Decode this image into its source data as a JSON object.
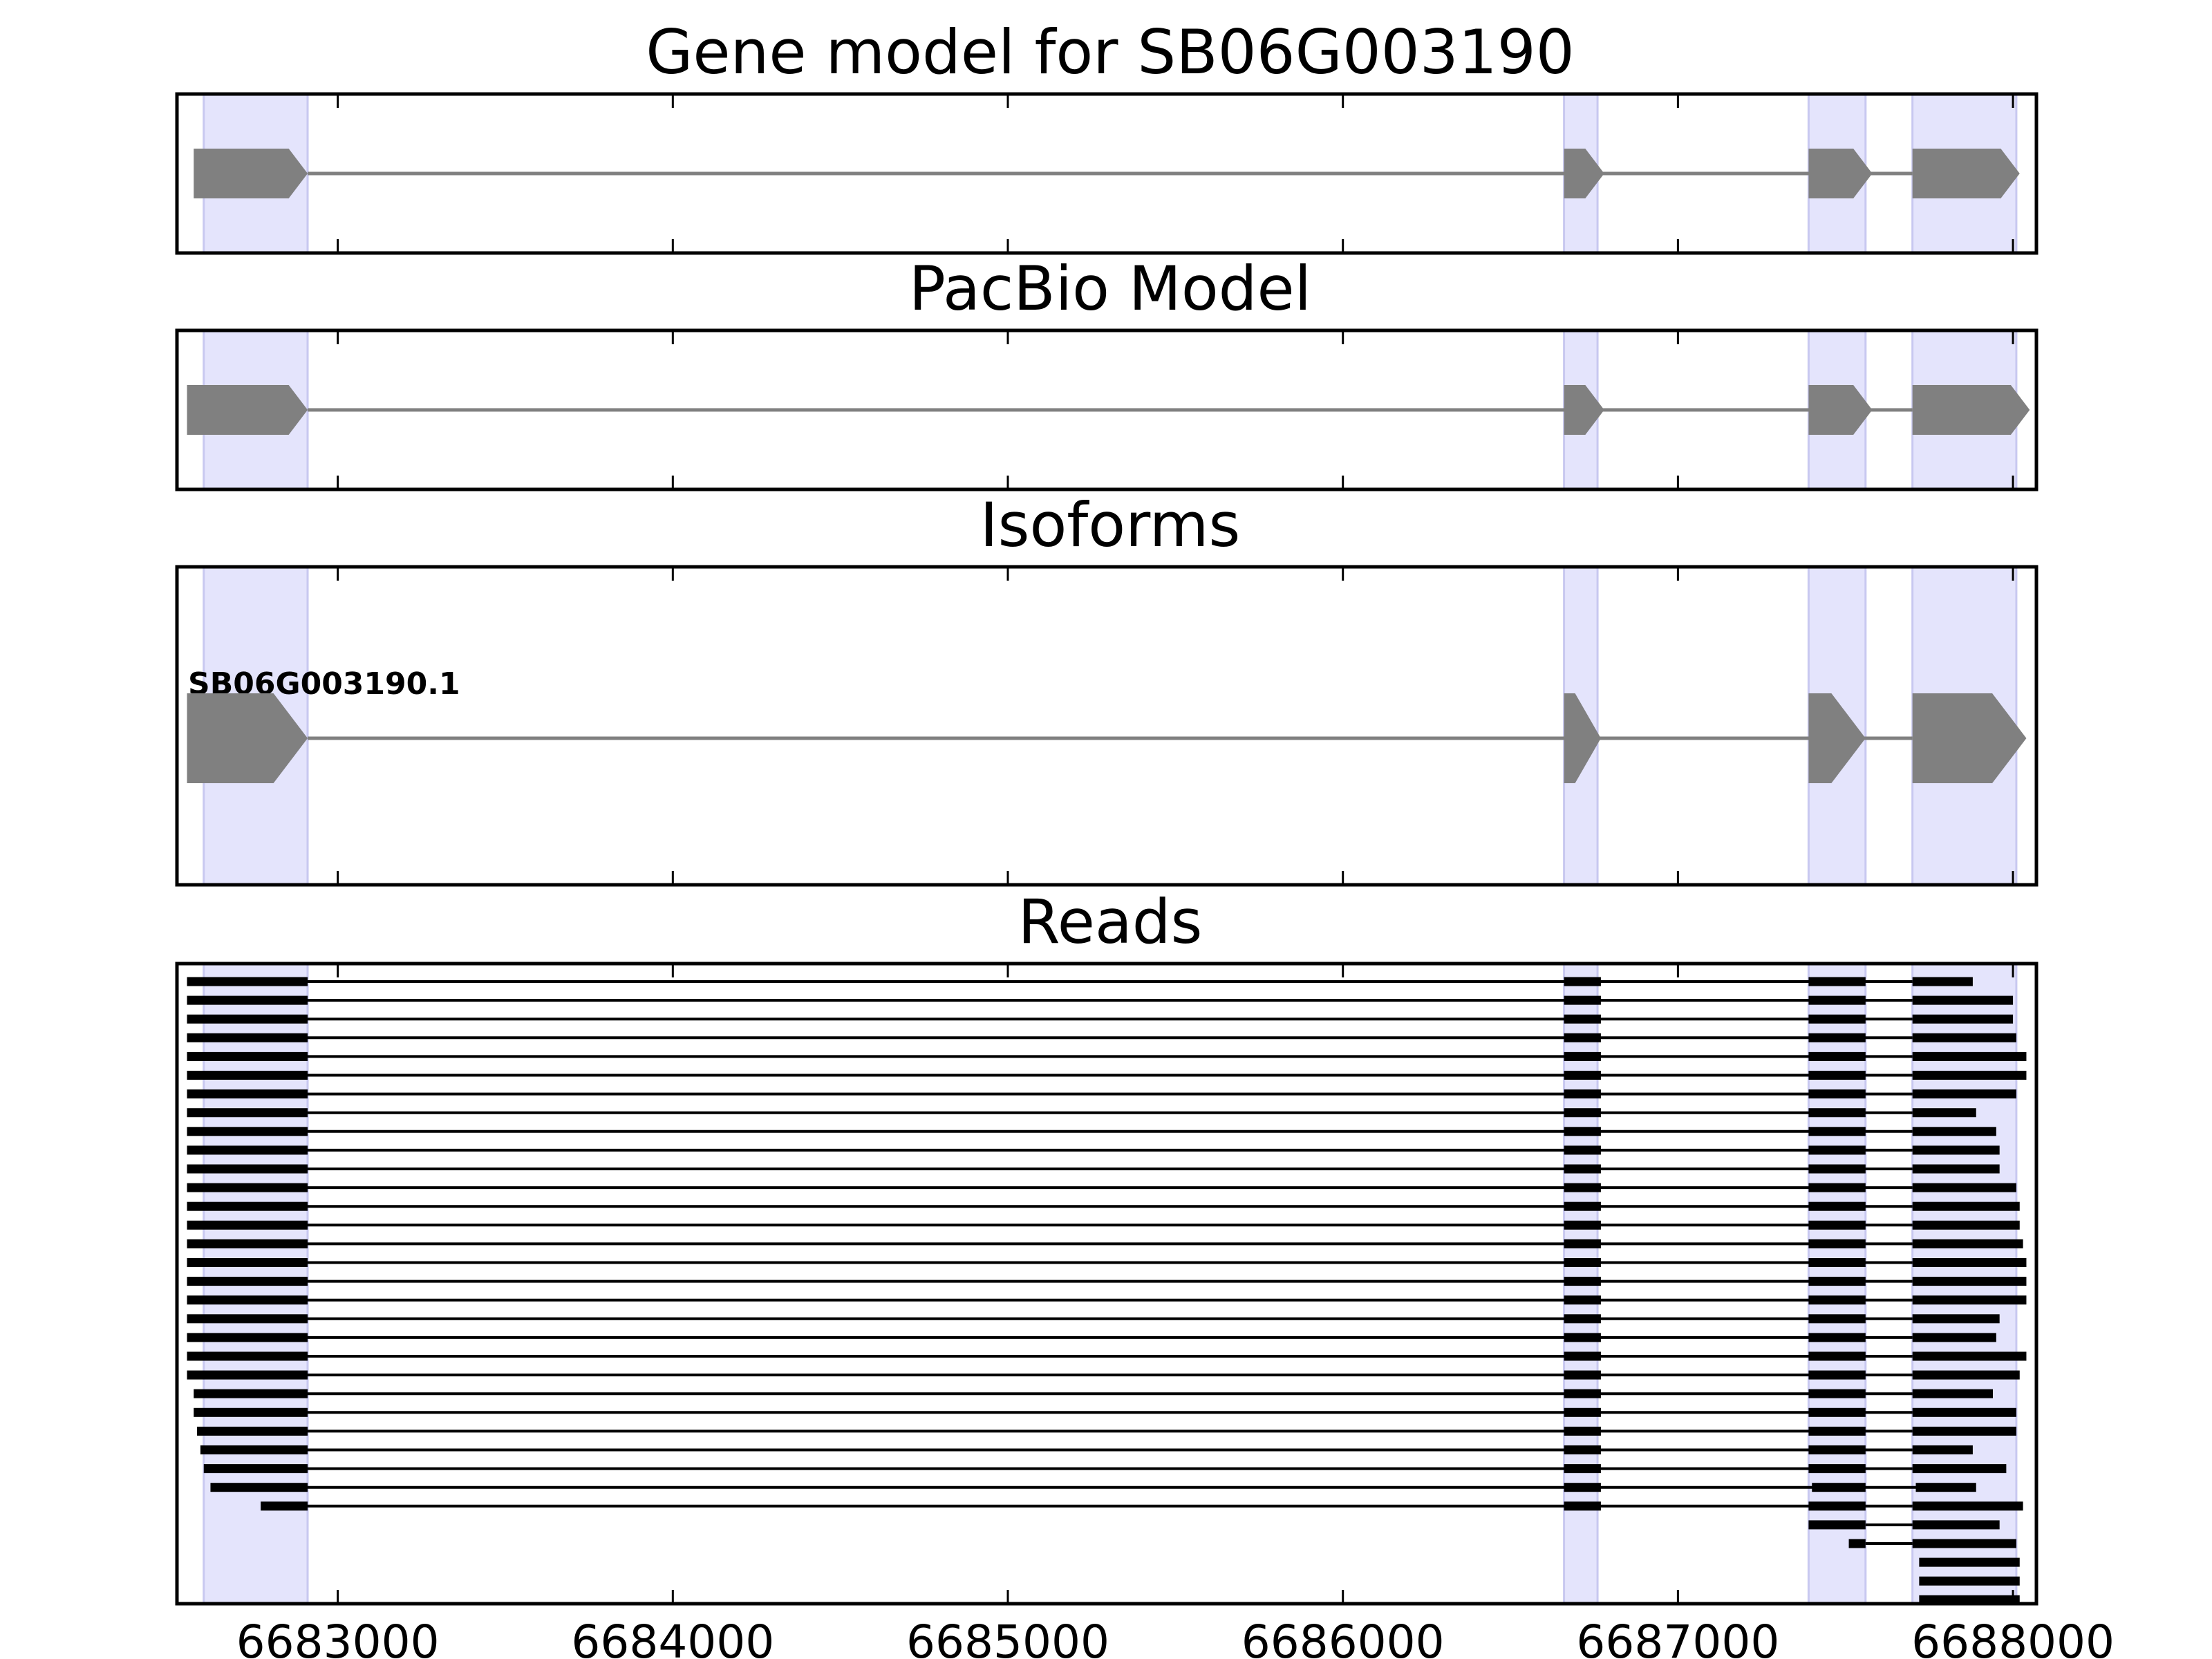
{
  "chart_data": {
    "type": "gene-structure",
    "xlim": [
      6682520,
      6688070
    ],
    "xticks": [
      6683000,
      6684000,
      6685000,
      6686000,
      6687000,
      6688000
    ],
    "xtick_labels": [
      "6683000",
      "6684000",
      "6685000",
      "6686000",
      "6687000",
      "6688000"
    ],
    "exon_highlights": [
      [
        6682600,
        6682910
      ],
      [
        6686660,
        6686760
      ],
      [
        6687390,
        6687560
      ],
      [
        6687700,
        6688010
      ]
    ],
    "colors": {
      "highlight": "#e4e4fc",
      "highlight_edge": "#c8c8f0",
      "gene": "#808080",
      "read": "#000000",
      "frame": "#000000"
    },
    "panels": [
      {
        "title": "Gene model for SB06G003190",
        "models": [
          {
            "label": "",
            "exons": [
              [
                6682570,
                6682910
              ],
              [
                6686660,
                6686780
              ],
              [
                6687390,
                6687580
              ],
              [
                6687700,
                6688020
              ]
            ]
          }
        ]
      },
      {
        "title": "PacBio Model",
        "models": [
          {
            "label": "",
            "exons": [
              [
                6682550,
                6682910
              ],
              [
                6686660,
                6686780
              ],
              [
                6687390,
                6687580
              ],
              [
                6687700,
                6688050
              ]
            ]
          }
        ]
      },
      {
        "title": "Isoforms",
        "models": [
          {
            "label": "SB06G003190.1",
            "exons": [
              [
                6682550,
                6682910
              ],
              [
                6686660,
                6686770
              ],
              [
                6687390,
                6687560
              ],
              [
                6687700,
                6688040
              ]
            ]
          }
        ]
      },
      {
        "title": "Reads",
        "reads": [
          [
            [
              6682550,
              6682910
            ],
            [
              6686660,
              6686770
            ],
            [
              6687390,
              6687560
            ],
            [
              6687700,
              6687880
            ]
          ],
          [
            [
              6682550,
              6682910
            ],
            [
              6686660,
              6686770
            ],
            [
              6687390,
              6687560
            ],
            [
              6687700,
              6688000
            ]
          ],
          [
            [
              6682550,
              6682910
            ],
            [
              6686660,
              6686770
            ],
            [
              6687390,
              6687560
            ],
            [
              6687700,
              6688000
            ]
          ],
          [
            [
              6682550,
              6682910
            ],
            [
              6686660,
              6686770
            ],
            [
              6687390,
              6687560
            ],
            [
              6687700,
              6688010
            ]
          ],
          [
            [
              6682550,
              6682910
            ],
            [
              6686660,
              6686770
            ],
            [
              6687390,
              6687560
            ],
            [
              6687700,
              6688040
            ]
          ],
          [
            [
              6682550,
              6682910
            ],
            [
              6686660,
              6686770
            ],
            [
              6687390,
              6687560
            ],
            [
              6687700,
              6688040
            ]
          ],
          [
            [
              6682550,
              6682910
            ],
            [
              6686660,
              6686770
            ],
            [
              6687390,
              6687560
            ],
            [
              6687700,
              6688010
            ]
          ],
          [
            [
              6682550,
              6682910
            ],
            [
              6686660,
              6686770
            ],
            [
              6687390,
              6687560
            ],
            [
              6687700,
              6687890
            ]
          ],
          [
            [
              6682550,
              6682910
            ],
            [
              6686660,
              6686770
            ],
            [
              6687390,
              6687560
            ],
            [
              6687700,
              6687950
            ]
          ],
          [
            [
              6682550,
              6682910
            ],
            [
              6686660,
              6686770
            ],
            [
              6687390,
              6687560
            ],
            [
              6687700,
              6687960
            ]
          ],
          [
            [
              6682550,
              6682910
            ],
            [
              6686660,
              6686770
            ],
            [
              6687390,
              6687560
            ],
            [
              6687700,
              6687960
            ]
          ],
          [
            [
              6682550,
              6682910
            ],
            [
              6686660,
              6686770
            ],
            [
              6687390,
              6687560
            ],
            [
              6687700,
              6688010
            ]
          ],
          [
            [
              6682550,
              6682910
            ],
            [
              6686660,
              6686770
            ],
            [
              6687390,
              6687560
            ],
            [
              6687700,
              6688020
            ]
          ],
          [
            [
              6682550,
              6682910
            ],
            [
              6686660,
              6686770
            ],
            [
              6687390,
              6687560
            ],
            [
              6687700,
              6688020
            ]
          ],
          [
            [
              6682550,
              6682910
            ],
            [
              6686660,
              6686770
            ],
            [
              6687390,
              6687560
            ],
            [
              6687700,
              6688030
            ]
          ],
          [
            [
              6682550,
              6682910
            ],
            [
              6686660,
              6686770
            ],
            [
              6687390,
              6687560
            ],
            [
              6687700,
              6688040
            ]
          ],
          [
            [
              6682550,
              6682910
            ],
            [
              6686660,
              6686770
            ],
            [
              6687390,
              6687560
            ],
            [
              6687700,
              6688040
            ]
          ],
          [
            [
              6682550,
              6682910
            ],
            [
              6686660,
              6686770
            ],
            [
              6687390,
              6687560
            ],
            [
              6687700,
              6688040
            ]
          ],
          [
            [
              6682550,
              6682910
            ],
            [
              6686660,
              6686770
            ],
            [
              6687390,
              6687560
            ],
            [
              6687700,
              6687960
            ]
          ],
          [
            [
              6682550,
              6682910
            ],
            [
              6686660,
              6686770
            ],
            [
              6687390,
              6687560
            ],
            [
              6687700,
              6687950
            ]
          ],
          [
            [
              6682550,
              6682910
            ],
            [
              6686660,
              6686770
            ],
            [
              6687390,
              6687560
            ],
            [
              6687700,
              6688040
            ]
          ],
          [
            [
              6682550,
              6682910
            ],
            [
              6686660,
              6686770
            ],
            [
              6687390,
              6687560
            ],
            [
              6687700,
              6688020
            ]
          ],
          [
            [
              6682570,
              6682910
            ],
            [
              6686660,
              6686770
            ],
            [
              6687390,
              6687560
            ],
            [
              6687700,
              6687940
            ]
          ],
          [
            [
              6682570,
              6682910
            ],
            [
              6686660,
              6686770
            ],
            [
              6687390,
              6687560
            ],
            [
              6687700,
              6688010
            ]
          ],
          [
            [
              6682580,
              6682910
            ],
            [
              6686660,
              6686770
            ],
            [
              6687390,
              6687560
            ],
            [
              6687700,
              6688010
            ]
          ],
          [
            [
              6682590,
              6682910
            ],
            [
              6686660,
              6686770
            ],
            [
              6687390,
              6687560
            ],
            [
              6687700,
              6687880
            ]
          ],
          [
            [
              6682600,
              6682910
            ],
            [
              6686660,
              6686770
            ],
            [
              6687390,
              6687560
            ],
            [
              6687700,
              6687980
            ]
          ],
          [
            [
              6682620,
              6682910
            ],
            [
              6686660,
              6686770
            ],
            [
              6687400,
              6687560
            ],
            [
              6687710,
              6687890
            ]
          ],
          [
            [
              6682770,
              6682910
            ],
            [
              6686660,
              6686770
            ],
            [
              6687390,
              6687560
            ],
            [
              6687700,
              6688030
            ]
          ],
          [
            [
              6687390,
              6687560
            ],
            [
              6687700,
              6687960
            ]
          ],
          [
            [
              6687510,
              6687560
            ],
            [
              6687700,
              6688010
            ]
          ],
          [
            [
              6687720,
              6688020
            ]
          ],
          [
            [
              6687720,
              6688020
            ]
          ],
          [
            [
              6687720,
              6688020
            ]
          ]
        ]
      }
    ]
  }
}
